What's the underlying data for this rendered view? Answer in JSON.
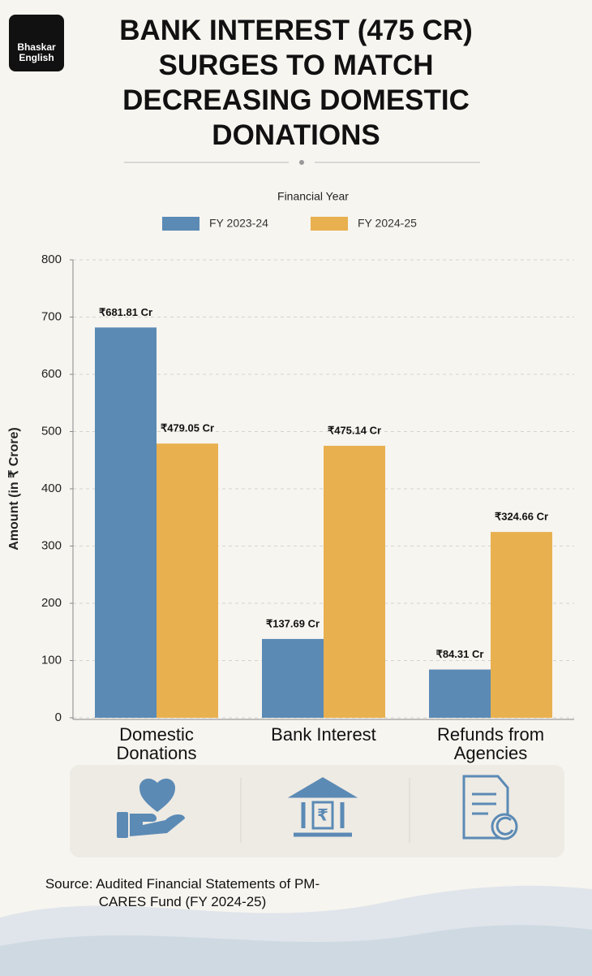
{
  "brand": "Bhaskar English",
  "source": "Source: Audited Financial Statements of PM-CARES Fund (FY 2024-25)",
  "chart_data": {
    "type": "bar",
    "title": "BANK INTEREST (475 CR) SURGES TO MATCH DECREASING DOMESTIC DONATIONS",
    "legend_title": "Financial Year",
    "y_label": "Amount (in ₹ Crore)",
    "categories": [
      "Domestic Donations",
      "Bank Interest",
      "Refunds from Agencies"
    ],
    "series": [
      {
        "name": "FY 2023-24",
        "color": "#5b8ab5",
        "values": [
          681.81,
          137.69,
          84.31
        ],
        "value_labels": [
          "₹681.81 Cr",
          "₹137.69 Cr",
          "₹84.31 Cr"
        ]
      },
      {
        "name": "FY 2024-25",
        "color": "#e8b04f",
        "values": [
          479.05,
          475.14,
          324.66
        ],
        "value_labels": [
          "₹479.05 Cr",
          "₹475.14 Cr",
          "₹324.66 Cr"
        ]
      }
    ],
    "ylim": [
      0,
      800
    ],
    "yticks": [
      0,
      100,
      200,
      300,
      400,
      500,
      600,
      700,
      800
    ],
    "grid": true,
    "legend": "top"
  }
}
